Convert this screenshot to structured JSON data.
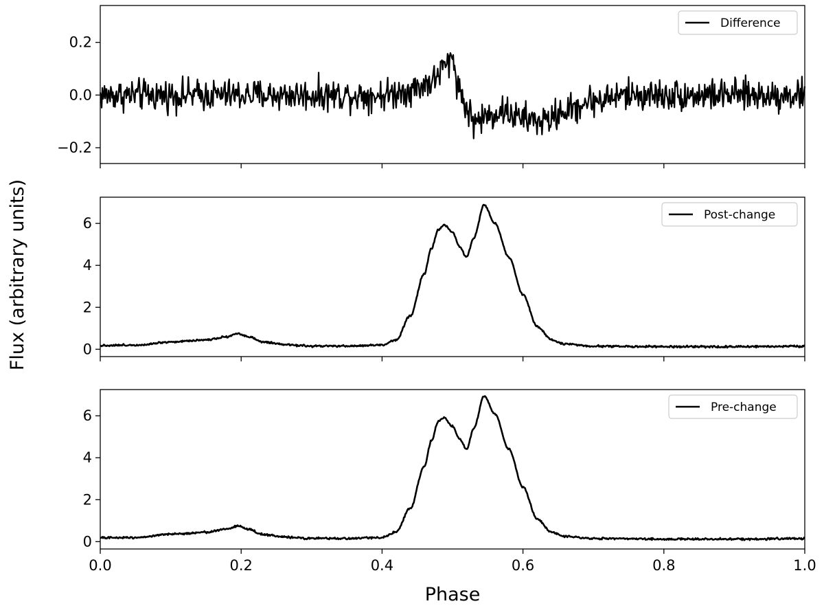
{
  "chart_data": {
    "type": "line",
    "xlabel": "Phase",
    "ylabel": "Flux (arbitrary units)",
    "xlim": [
      0.0,
      1.0
    ],
    "x_ticks": [
      "0.0",
      "0.2",
      "0.4",
      "0.6",
      "0.8",
      "1.0"
    ],
    "panels": [
      {
        "legend": "Difference",
        "legend_position": "top-right",
        "ylim": [
          -0.26,
          0.34
        ],
        "y_ticks": [
          {
            "value": -0.2,
            "label": "−0.2"
          },
          {
            "value": 0.0,
            "label": "0.0"
          },
          {
            "value": 0.2,
            "label": "0.2"
          }
        ],
        "profile": [
          [
            0.0,
            0.0
          ],
          [
            0.1,
            0.0
          ],
          [
            0.2,
            0.0
          ],
          [
            0.3,
            0.0
          ],
          [
            0.4,
            0.0
          ],
          [
            0.44,
            0.02
          ],
          [
            0.47,
            0.05
          ],
          [
            0.49,
            0.11
          ],
          [
            0.5,
            0.14
          ],
          [
            0.51,
            0.02
          ],
          [
            0.52,
            -0.05
          ],
          [
            0.53,
            -0.1
          ],
          [
            0.55,
            -0.08
          ],
          [
            0.57,
            -0.06
          ],
          [
            0.6,
            -0.09
          ],
          [
            0.63,
            -0.1
          ],
          [
            0.66,
            -0.06
          ],
          [
            0.7,
            -0.02
          ],
          [
            0.75,
            0.0
          ],
          [
            1.0,
            0.0
          ]
        ],
        "noise": 0.045
      },
      {
        "legend": "Post-change",
        "legend_position": "top-right",
        "ylim": [
          -0.35,
          7.25
        ],
        "y_ticks": [
          {
            "value": 0,
            "label": "0"
          },
          {
            "value": 2,
            "label": "2"
          },
          {
            "value": 4,
            "label": "4"
          },
          {
            "value": 6,
            "label": "6"
          }
        ],
        "profile": [
          [
            0.0,
            0.18
          ],
          [
            0.05,
            0.2
          ],
          [
            0.1,
            0.35
          ],
          [
            0.15,
            0.45
          ],
          [
            0.18,
            0.6
          ],
          [
            0.195,
            0.75
          ],
          [
            0.21,
            0.6
          ],
          [
            0.23,
            0.35
          ],
          [
            0.26,
            0.22
          ],
          [
            0.3,
            0.15
          ],
          [
            0.35,
            0.15
          ],
          [
            0.4,
            0.2
          ],
          [
            0.42,
            0.45
          ],
          [
            0.44,
            1.6
          ],
          [
            0.46,
            3.6
          ],
          [
            0.47,
            4.8
          ],
          [
            0.48,
            5.7
          ],
          [
            0.488,
            5.92
          ],
          [
            0.5,
            5.6
          ],
          [
            0.51,
            4.9
          ],
          [
            0.52,
            4.4
          ],
          [
            0.53,
            5.3
          ],
          [
            0.545,
            6.9
          ],
          [
            0.56,
            6.0
          ],
          [
            0.58,
            4.4
          ],
          [
            0.6,
            2.6
          ],
          [
            0.62,
            1.1
          ],
          [
            0.64,
            0.45
          ],
          [
            0.66,
            0.25
          ],
          [
            0.7,
            0.15
          ],
          [
            0.8,
            0.12
          ],
          [
            0.9,
            0.12
          ],
          [
            1.0,
            0.15
          ]
        ],
        "noise": 0.035
      },
      {
        "legend": "Pre-change",
        "legend_position": "top-right",
        "ylim": [
          -0.35,
          7.25
        ],
        "y_ticks": [
          {
            "value": 0,
            "label": "0"
          },
          {
            "value": 2,
            "label": "2"
          },
          {
            "value": 4,
            "label": "4"
          },
          {
            "value": 6,
            "label": "6"
          }
        ],
        "profile": [
          [
            0.0,
            0.18
          ],
          [
            0.05,
            0.2
          ],
          [
            0.1,
            0.35
          ],
          [
            0.15,
            0.45
          ],
          [
            0.18,
            0.6
          ],
          [
            0.195,
            0.75
          ],
          [
            0.21,
            0.6
          ],
          [
            0.23,
            0.35
          ],
          [
            0.26,
            0.22
          ],
          [
            0.3,
            0.15
          ],
          [
            0.35,
            0.15
          ],
          [
            0.4,
            0.2
          ],
          [
            0.42,
            0.45
          ],
          [
            0.44,
            1.6
          ],
          [
            0.46,
            3.6
          ],
          [
            0.47,
            4.8
          ],
          [
            0.48,
            5.75
          ],
          [
            0.488,
            5.9
          ],
          [
            0.5,
            5.5
          ],
          [
            0.51,
            4.9
          ],
          [
            0.52,
            4.4
          ],
          [
            0.53,
            5.4
          ],
          [
            0.545,
            6.95
          ],
          [
            0.56,
            6.1
          ],
          [
            0.58,
            4.4
          ],
          [
            0.6,
            2.6
          ],
          [
            0.62,
            1.1
          ],
          [
            0.64,
            0.45
          ],
          [
            0.66,
            0.25
          ],
          [
            0.7,
            0.15
          ],
          [
            0.8,
            0.12
          ],
          [
            0.9,
            0.12
          ],
          [
            1.0,
            0.15
          ]
        ],
        "noise": 0.035
      }
    ]
  }
}
